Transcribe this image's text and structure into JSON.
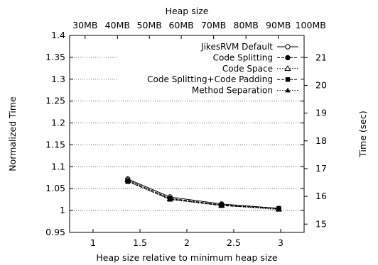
{
  "chart_data": {
    "type": "line",
    "title": "",
    "xlabel": "Heap size relative to minimum heap size",
    "ylabel": "Normalized Time",
    "x2label": "Heap size",
    "y2label": "Time (sec)",
    "xlim": [
      0.75,
      3.25
    ],
    "ylim": [
      0.95,
      1.4
    ],
    "y2lim": [
      14.7,
      21.8
    ],
    "xticks": [
      1,
      1.5,
      2,
      2.5,
      3
    ],
    "xtick_labels": [
      "1",
      "1.5",
      "2",
      "2.5",
      "3"
    ],
    "yticks": [
      0.95,
      1,
      1.05,
      1.1,
      1.15,
      1.2,
      1.25,
      1.3,
      1.35,
      1.4
    ],
    "ytick_labels": [
      "0.95",
      "1",
      "1.05",
      "1.1",
      "1.15",
      "1.2",
      "1.25",
      "1.3",
      "1.35",
      "1.4"
    ],
    "y2ticks": [
      15,
      16,
      17,
      18,
      19,
      20,
      21
    ],
    "y2tick_labels": [
      "15",
      "16",
      "17",
      "18",
      "19",
      "20",
      "21"
    ],
    "x2ticks": [
      0.915,
      1.26,
      1.6,
      1.94,
      2.285,
      2.63,
      2.975,
      3.32
    ],
    "x2tick_labels": [
      "30MB",
      "40MB",
      "50MB",
      "60MB",
      "70MB",
      "80MB",
      "90MB",
      "100MB"
    ],
    "grid": "horizontal-dotted",
    "legend_position": "top-right",
    "x": [
      1.37,
      1.82,
      2.37,
      2.98
    ],
    "series": [
      {
        "name": "JikesRVM Default",
        "values": [
          1.072,
          1.031,
          1.015,
          1.005
        ],
        "marker": "circle-open",
        "dash": "solid"
      },
      {
        "name": "Code Splitting",
        "values": [
          1.069,
          1.028,
          1.013,
          1.004
        ],
        "marker": "circle-filled",
        "dash": "dashed"
      },
      {
        "name": "Code Space",
        "values": [
          1.07,
          1.027,
          1.012,
          1.003
        ],
        "marker": "triangle-open",
        "dash": "dotted"
      },
      {
        "name": "Code Splitting+Code Padding",
        "values": [
          1.066,
          1.026,
          1.011,
          1.005
        ],
        "marker": "square-filled",
        "dash": "dashed"
      },
      {
        "name": "Method Separation",
        "values": [
          1.067,
          1.025,
          1.012,
          1.002
        ],
        "marker": "triangle-filled",
        "dash": "dotted"
      }
    ]
  }
}
